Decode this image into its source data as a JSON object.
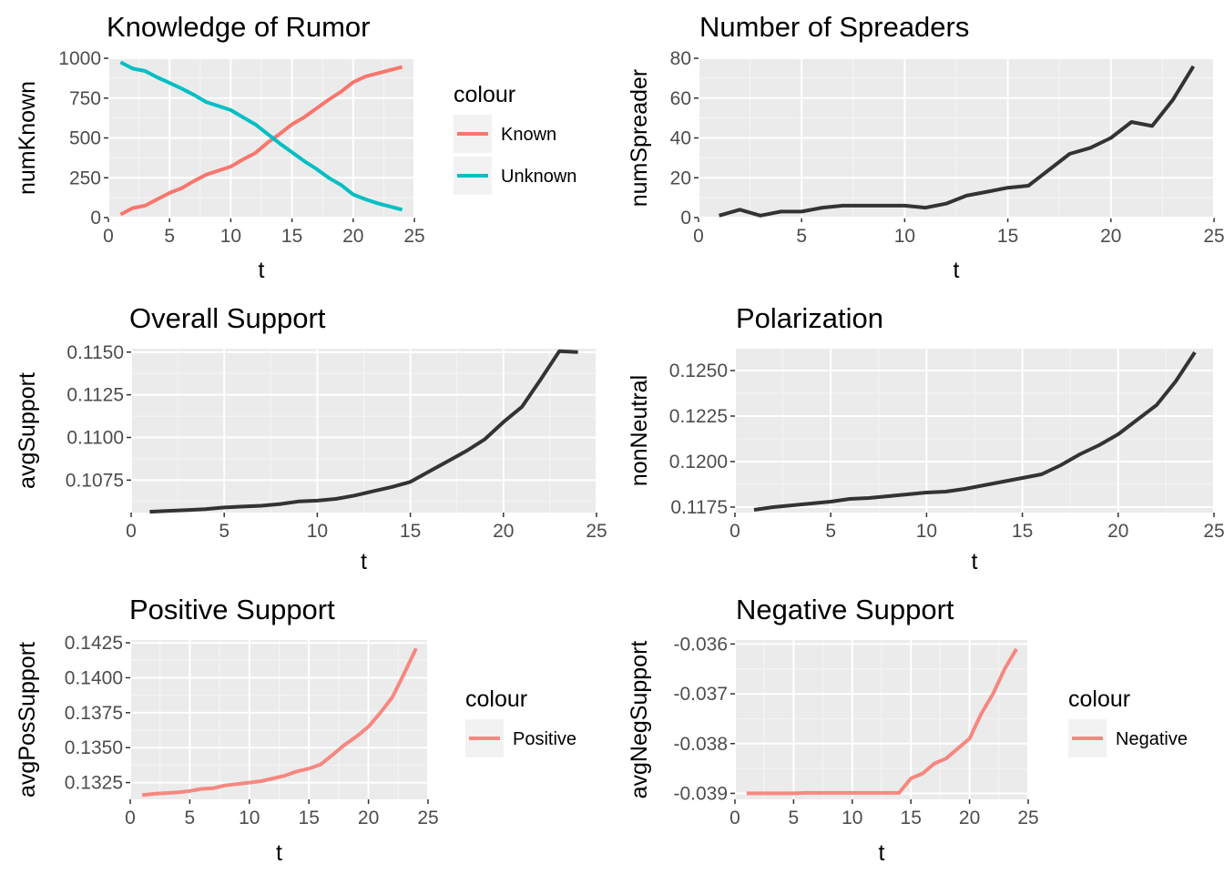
{
  "colors": {
    "panel_bg": "#EBEBEB",
    "grid_major": "#FFFFFF",
    "grid_minor": "#F5F5F5",
    "series_dark": "#333333",
    "known": "#F8766D",
    "unknown": "#00BFC4"
  },
  "chart_data": [
    {
      "type": "line",
      "title": "Knowledge of Rumor",
      "xlabel": "t",
      "ylabel": "numKnown",
      "xlim": [
        0,
        25
      ],
      "ylim": [
        0,
        1000
      ],
      "xticks": [
        0,
        5,
        10,
        15,
        20,
        25
      ],
      "yticks": [
        0,
        250,
        500,
        750,
        1000
      ],
      "ytick_labels": [
        "0",
        "250",
        "500",
        "750",
        "1000"
      ],
      "grid": true,
      "legend": {
        "title": "colour",
        "position": "right"
      },
      "x": [
        1,
        2,
        3,
        4,
        5,
        6,
        7,
        8,
        9,
        10,
        11,
        12,
        13,
        14,
        15,
        16,
        17,
        18,
        19,
        20,
        21,
        22,
        23,
        24
      ],
      "series": [
        {
          "name": "Known",
          "color": "#F8766D",
          "values": [
            20,
            60,
            75,
            115,
            155,
            185,
            230,
            270,
            295,
            320,
            365,
            405,
            470,
            525,
            585,
            630,
            685,
            740,
            790,
            850,
            885,
            905,
            925,
            945
          ]
        },
        {
          "name": "Unknown",
          "color": "#00BFC4",
          "values": [
            975,
            935,
            920,
            880,
            845,
            810,
            770,
            725,
            700,
            675,
            630,
            585,
            525,
            465,
            410,
            355,
            305,
            250,
            205,
            145,
            115,
            90,
            70,
            50
          ]
        }
      ]
    },
    {
      "type": "line",
      "title": "Number of Spreaders",
      "xlabel": "t",
      "ylabel": "numSpreader",
      "xlim": [
        0,
        25
      ],
      "ylim": [
        0,
        80
      ],
      "xticks": [
        0,
        5,
        10,
        15,
        20,
        25
      ],
      "yticks": [
        0,
        20,
        40,
        60,
        80
      ],
      "ytick_labels": [
        "0",
        "20",
        "40",
        "60",
        "80"
      ],
      "grid": true,
      "x": [
        1,
        2,
        3,
        4,
        5,
        6,
        7,
        8,
        9,
        10,
        11,
        12,
        13,
        14,
        15,
        16,
        17,
        18,
        19,
        20,
        21,
        22,
        23,
        24
      ],
      "series": [
        {
          "color": "#333333",
          "values": [
            1,
            4,
            1,
            3,
            3,
            5,
            6,
            6,
            6,
            6,
            5,
            7,
            11,
            13,
            15,
            16,
            24,
            32,
            35,
            40,
            48,
            46,
            59,
            76
          ]
        }
      ]
    },
    {
      "type": "line",
      "title": "Overall Support",
      "xlabel": "t",
      "ylabel": "avgSupport",
      "xlim": [
        0,
        25
      ],
      "ylim": [
        0.1056,
        0.1152
      ],
      "xticks": [
        0,
        5,
        10,
        15,
        20,
        25
      ],
      "yticks": [
        0.1075,
        0.11,
        0.1125,
        0.115
      ],
      "ytick_labels": [
        "0.1075",
        "0.1100",
        "0.1125",
        "0.1150"
      ],
      "grid": true,
      "x": [
        1,
        2,
        3,
        4,
        5,
        6,
        7,
        8,
        9,
        10,
        11,
        12,
        13,
        14,
        15,
        16,
        17,
        18,
        19,
        20,
        21,
        22,
        23,
        24
      ],
      "series": [
        {
          "color": "#333333",
          "values": [
            0.10565,
            0.1057,
            0.10575,
            0.1058,
            0.1059,
            0.10595,
            0.106,
            0.1061,
            0.10625,
            0.1063,
            0.1064,
            0.1066,
            0.10685,
            0.1071,
            0.1074,
            0.108,
            0.1086,
            0.1092,
            0.1099,
            0.1109,
            0.1118,
            0.1134,
            0.11505,
            0.115
          ]
        }
      ]
    },
    {
      "type": "line",
      "title": "Polarization",
      "xlabel": "t",
      "ylabel": "nonNeutral",
      "xlim": [
        0,
        25
      ],
      "ylim": [
        0.1172,
        0.1262
      ],
      "xticks": [
        0,
        5,
        10,
        15,
        20,
        25
      ],
      "yticks": [
        0.1175,
        0.12,
        0.1225,
        0.125
      ],
      "ytick_labels": [
        "0.1175",
        "0.1200",
        "0.1225",
        "0.1250"
      ],
      "grid": true,
      "x": [
        1,
        2,
        3,
        4,
        5,
        6,
        7,
        8,
        9,
        10,
        11,
        12,
        13,
        14,
        15,
        16,
        17,
        18,
        19,
        20,
        21,
        22,
        23,
        24
      ],
      "series": [
        {
          "color": "#333333",
          "values": [
            0.11735,
            0.1175,
            0.1176,
            0.1177,
            0.1178,
            0.11795,
            0.118,
            0.1181,
            0.1182,
            0.1183,
            0.11835,
            0.1185,
            0.1187,
            0.1189,
            0.1191,
            0.1193,
            0.1198,
            0.1204,
            0.1209,
            0.1215,
            0.1223,
            0.1231,
            0.1244,
            0.126
          ]
        }
      ]
    },
    {
      "type": "line",
      "title": "Positive Support",
      "xlabel": "t",
      "ylabel": "avgPosSupport",
      "xlim": [
        0,
        25
      ],
      "ylim": [
        0.1313,
        0.1427
      ],
      "xticks": [
        0,
        5,
        10,
        15,
        20,
        25
      ],
      "yticks": [
        0.1325,
        0.135,
        0.1375,
        0.14,
        0.1425
      ],
      "ytick_labels": [
        "0.1325",
        "0.1350",
        "0.1375",
        "0.1400",
        "0.1425"
      ],
      "grid": true,
      "legend": {
        "title": "colour",
        "position": "right"
      },
      "x": [
        1,
        2,
        3,
        4,
        5,
        6,
        7,
        8,
        9,
        10,
        11,
        12,
        13,
        14,
        15,
        16,
        17,
        18,
        19,
        20,
        21,
        22,
        23,
        24
      ],
      "series": [
        {
          "name": "Positive",
          "color": "#F8766D",
          "values": [
            0.1316,
            0.1317,
            0.13175,
            0.1318,
            0.1319,
            0.13205,
            0.1321,
            0.1323,
            0.1324,
            0.1325,
            0.1326,
            0.1328,
            0.133,
            0.1333,
            0.1335,
            0.1338,
            0.1345,
            0.1352,
            0.1358,
            0.1365,
            0.1375,
            0.1386,
            0.1403,
            0.1421
          ]
        }
      ]
    },
    {
      "type": "line",
      "title": "Negative Support",
      "xlabel": "t",
      "ylabel": "avgNegSupport",
      "xlim": [
        0,
        25
      ],
      "ylim": [
        -0.03912,
        -0.03592
      ],
      "xticks": [
        0,
        5,
        10,
        15,
        20,
        25
      ],
      "yticks": [
        -0.039,
        -0.038,
        -0.037,
        -0.036
      ],
      "ytick_labels": [
        "-0.039",
        "-0.038",
        "-0.037",
        "-0.036"
      ],
      "grid": true,
      "legend": {
        "title": "colour",
        "position": "right"
      },
      "x": [
        1,
        2,
        3,
        4,
        5,
        6,
        7,
        8,
        9,
        10,
        11,
        12,
        13,
        14,
        15,
        16,
        17,
        18,
        19,
        20,
        21,
        22,
        23,
        24
      ],
      "series": [
        {
          "name": "Negative",
          "color": "#F8766D",
          "values": [
            -0.039,
            -0.039,
            -0.039,
            -0.039,
            -0.039,
            -0.03899,
            -0.03899,
            -0.03899,
            -0.03899,
            -0.03899,
            -0.03899,
            -0.03899,
            -0.03899,
            -0.03899,
            -0.0387,
            -0.0386,
            -0.0384,
            -0.0383,
            -0.0381,
            -0.0379,
            -0.0374,
            -0.037,
            -0.0365,
            -0.0361
          ]
        }
      ]
    }
  ]
}
